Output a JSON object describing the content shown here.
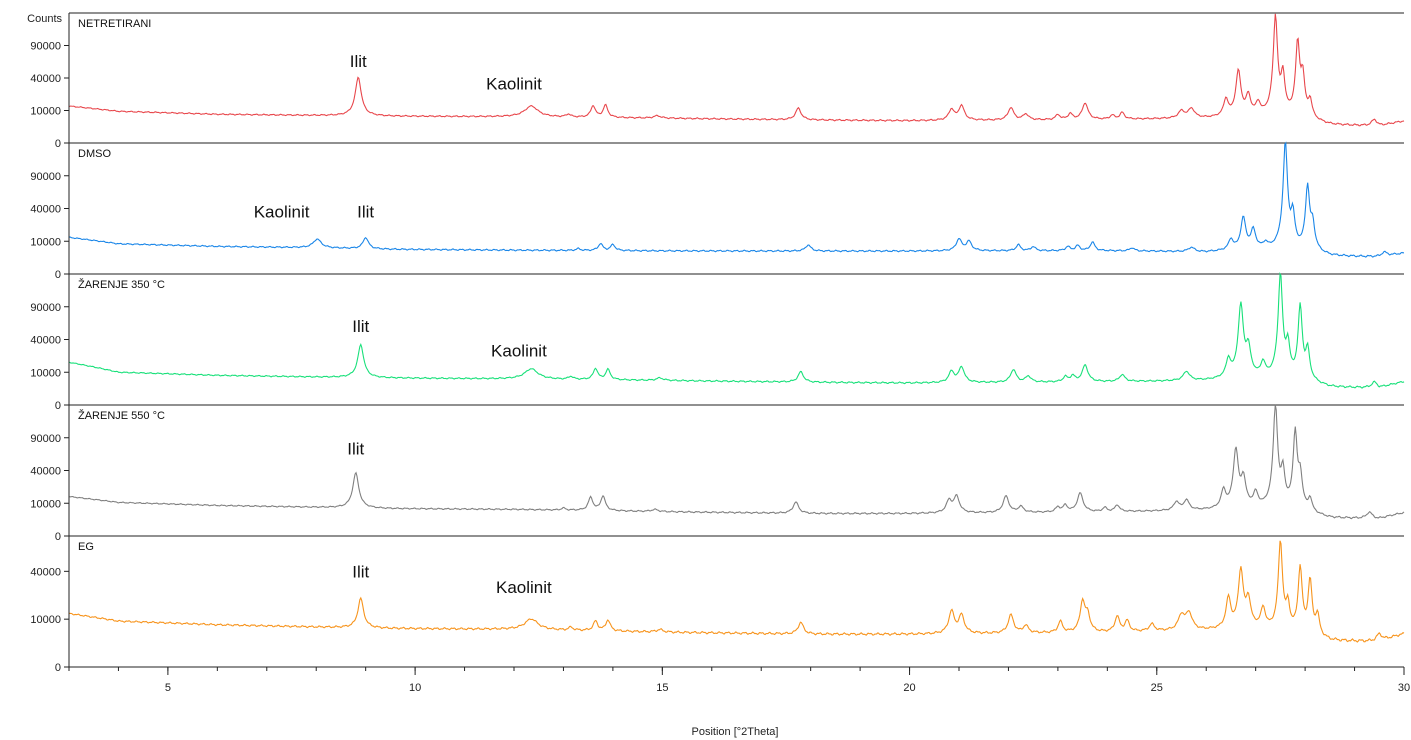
{
  "chart_data": {
    "type": "line",
    "x_range": [
      3,
      30
    ],
    "x_ticks": [
      5,
      10,
      15,
      20,
      25,
      30
    ],
    "x_minor_step": 1,
    "xlabel": "Position [°2Theta]",
    "ylabel": "Counts",
    "grid": false,
    "line_colors": [
      "#e8474c",
      "#1a86e8",
      "#19e07a",
      "#808080",
      "#f7941d"
    ],
    "series": [
      {
        "name": "NETRETIRANI",
        "color": "#e8474c",
        "y_ticks": [
          0,
          10000,
          40000,
          90000
        ],
        "ymax": 160000,
        "base": [
          [
            3,
            12900
          ],
          [
            4,
            9500
          ],
          [
            6,
            7800
          ],
          [
            8,
            7200
          ],
          [
            9.5,
            6800
          ],
          [
            12,
            6500
          ],
          [
            15,
            5800
          ],
          [
            18,
            5000
          ],
          [
            20,
            4700
          ],
          [
            22,
            4900
          ],
          [
            24,
            5200
          ],
          [
            26,
            5700
          ],
          [
            27,
            6200
          ],
          [
            28.5,
            2800
          ],
          [
            29.5,
            2600
          ],
          [
            30,
            4500
          ]
        ],
        "peaks": [
          [
            8.85,
            0.06,
            34000
          ],
          [
            12.35,
            0.15,
            6500
          ],
          [
            13.1,
            0.05,
            1500
          ],
          [
            13.6,
            0.05,
            7000
          ],
          [
            13.85,
            0.05,
            7500
          ],
          [
            14.9,
            0.08,
            1200
          ],
          [
            17.75,
            0.06,
            6500
          ],
          [
            20.85,
            0.06,
            6000
          ],
          [
            21.05,
            0.06,
            8500
          ],
          [
            22.05,
            0.06,
            7000
          ],
          [
            22.35,
            0.06,
            3000
          ],
          [
            23.0,
            0.05,
            2500
          ],
          [
            23.25,
            0.05,
            3000
          ],
          [
            23.55,
            0.06,
            10000
          ],
          [
            24.1,
            0.05,
            2000
          ],
          [
            24.3,
            0.05,
            3500
          ],
          [
            25.5,
            0.07,
            4000
          ],
          [
            25.7,
            0.07,
            5500
          ],
          [
            26.4,
            0.05,
            12000
          ],
          [
            26.65,
            0.05,
            44000
          ],
          [
            26.85,
            0.05,
            15000
          ],
          [
            27.05,
            0.05,
            8000
          ],
          [
            27.4,
            0.04,
            150000
          ],
          [
            27.55,
            0.04,
            40000
          ],
          [
            27.85,
            0.04,
            95000
          ],
          [
            27.95,
            0.04,
            40000
          ],
          [
            28.1,
            0.04,
            12000
          ],
          [
            29.4,
            0.06,
            2500
          ]
        ],
        "annotations": [
          {
            "text": "Ilit",
            "x": 8.85,
            "y": 55000
          },
          {
            "text": "Kaolinit",
            "x": 12.0,
            "y": 27000
          }
        ]
      },
      {
        "name": "DMSO",
        "color": "#1a86e8",
        "y_ticks": [
          0,
          10000,
          40000,
          90000
        ],
        "ymax": 160000,
        "base": [
          [
            3,
            12500
          ],
          [
            4,
            8500
          ],
          [
            6,
            7100
          ],
          [
            8,
            6400
          ],
          [
            9.5,
            5700
          ],
          [
            12,
            5300
          ],
          [
            15,
            5000
          ],
          [
            18,
            4900
          ],
          [
            20,
            4900
          ],
          [
            22,
            5000
          ],
          [
            24,
            5000
          ],
          [
            25,
            4800
          ],
          [
            26,
            4400
          ],
          [
            27,
            5500
          ],
          [
            28.5,
            2700
          ],
          [
            29.5,
            2700
          ],
          [
            30,
            4000
          ]
        ],
        "peaks": [
          [
            8.02,
            0.09,
            5000
          ],
          [
            9.0,
            0.06,
            6500
          ],
          [
            13.3,
            0.05,
            800
          ],
          [
            13.75,
            0.05,
            3500
          ],
          [
            14.0,
            0.05,
            3000
          ],
          [
            17.95,
            0.06,
            3000
          ],
          [
            21.0,
            0.06,
            6500
          ],
          [
            21.2,
            0.06,
            5000
          ],
          [
            22.2,
            0.05,
            3000
          ],
          [
            22.5,
            0.05,
            2000
          ],
          [
            23.2,
            0.05,
            2000
          ],
          [
            23.4,
            0.05,
            2500
          ],
          [
            23.7,
            0.05,
            4500
          ],
          [
            24.5,
            0.05,
            1500
          ],
          [
            25.7,
            0.07,
            2000
          ],
          [
            26.5,
            0.05,
            6000
          ],
          [
            26.75,
            0.05,
            25000
          ],
          [
            26.95,
            0.05,
            13000
          ],
          [
            27.2,
            0.05,
            3000
          ],
          [
            27.6,
            0.04,
            160000
          ],
          [
            27.75,
            0.04,
            30000
          ],
          [
            28.05,
            0.04,
            70000
          ],
          [
            28.15,
            0.04,
            20000
          ],
          [
            29.6,
            0.06,
            1500
          ]
        ],
        "annotations": [
          {
            "text": "Kaolinit",
            "x": 7.3,
            "y": 30000
          },
          {
            "text": "Ilit",
            "x": 9.0,
            "y": 30000
          }
        ]
      },
      {
        "name": "ŽARENJE 350 °C",
        "color": "#19e07a",
        "y_ticks": [
          0,
          10000,
          40000,
          90000
        ],
        "ymax": 160000,
        "base": [
          [
            3,
            17000
          ],
          [
            4,
            10000
          ],
          [
            6,
            8200
          ],
          [
            8,
            7300
          ],
          [
            9.5,
            6800
          ],
          [
            12,
            6300
          ],
          [
            15,
            5600
          ],
          [
            18,
            4800
          ],
          [
            20,
            4500
          ],
          [
            22,
            4700
          ],
          [
            24,
            5000
          ],
          [
            26,
            5400
          ],
          [
            27,
            6000
          ],
          [
            28.5,
            2600
          ],
          [
            29.5,
            2600
          ],
          [
            30,
            5000
          ]
        ],
        "peaks": [
          [
            8.9,
            0.06,
            27000
          ],
          [
            12.35,
            0.15,
            6000
          ],
          [
            13.15,
            0.05,
            1500
          ],
          [
            13.65,
            0.05,
            6500
          ],
          [
            13.9,
            0.05,
            6000
          ],
          [
            14.95,
            0.08,
            1200
          ],
          [
            17.8,
            0.06,
            5500
          ],
          [
            20.85,
            0.06,
            6000
          ],
          [
            21.05,
            0.06,
            9000
          ],
          [
            22.1,
            0.06,
            7000
          ],
          [
            22.4,
            0.06,
            3000
          ],
          [
            23.15,
            0.05,
            2500
          ],
          [
            23.3,
            0.05,
            3000
          ],
          [
            23.55,
            0.06,
            10000
          ],
          [
            24.3,
            0.06,
            3500
          ],
          [
            25.6,
            0.07,
            5000
          ],
          [
            26.45,
            0.05,
            13000
          ],
          [
            26.7,
            0.05,
            90000
          ],
          [
            26.85,
            0.05,
            25000
          ],
          [
            27.15,
            0.05,
            10000
          ],
          [
            27.5,
            0.04,
            160000
          ],
          [
            27.65,
            0.04,
            30000
          ],
          [
            27.9,
            0.04,
            90000
          ],
          [
            28.05,
            0.04,
            25000
          ],
          [
            29.4,
            0.06,
            2200
          ]
        ],
        "annotations": [
          {
            "text": "Ilit",
            "x": 8.9,
            "y": 50000
          },
          {
            "text": "Kaolinit",
            "x": 12.1,
            "y": 22000
          }
        ]
      },
      {
        "name": "ŽARENJE 550 °C",
        "color": "#808080",
        "y_ticks": [
          0,
          10000,
          40000,
          90000
        ],
        "ymax": 160000,
        "base": [
          [
            3,
            14500
          ],
          [
            4,
            10500
          ],
          [
            6,
            8700
          ],
          [
            8,
            7700
          ],
          [
            9.5,
            7000
          ],
          [
            12,
            6600
          ],
          [
            15,
            5500
          ],
          [
            18,
            4700
          ],
          [
            20,
            4700
          ],
          [
            22,
            5000
          ],
          [
            24,
            5400
          ],
          [
            26,
            6000
          ],
          [
            27,
            6500
          ],
          [
            28.5,
            2700
          ],
          [
            29.5,
            2700
          ],
          [
            30,
            5000
          ]
        ],
        "peaks": [
          [
            8.8,
            0.06,
            30000
          ],
          [
            13.0,
            0.05,
            1000
          ],
          [
            13.55,
            0.05,
            8000
          ],
          [
            13.8,
            0.05,
            9000
          ],
          [
            14.85,
            0.08,
            1000
          ],
          [
            17.7,
            0.06,
            6000
          ],
          [
            20.8,
            0.06,
            7000
          ],
          [
            20.95,
            0.06,
            10000
          ],
          [
            21.95,
            0.06,
            10000
          ],
          [
            22.25,
            0.06,
            3000
          ],
          [
            23.0,
            0.05,
            2500
          ],
          [
            23.15,
            0.05,
            3500
          ],
          [
            23.45,
            0.06,
            12000
          ],
          [
            23.95,
            0.05,
            2000
          ],
          [
            24.2,
            0.05,
            3500
          ],
          [
            25.4,
            0.06,
            5000
          ],
          [
            25.6,
            0.06,
            6000
          ],
          [
            26.35,
            0.05,
            13000
          ],
          [
            26.6,
            0.05,
            65000
          ],
          [
            26.75,
            0.05,
            25000
          ],
          [
            27.0,
            0.05,
            10000
          ],
          [
            27.4,
            0.04,
            160000
          ],
          [
            27.55,
            0.04,
            35000
          ],
          [
            27.8,
            0.04,
            100000
          ],
          [
            27.9,
            0.04,
            30000
          ],
          [
            28.1,
            0.04,
            8000
          ],
          [
            29.3,
            0.06,
            2500
          ]
        ],
        "annotations": [
          {
            "text": "Ilit",
            "x": 8.8,
            "y": 62000
          }
        ]
      },
      {
        "name": "EG",
        "color": "#f7941d",
        "y_ticks": [
          0,
          10000,
          40000
        ],
        "ymax": 75000,
        "base": [
          [
            3,
            12500
          ],
          [
            4,
            9200
          ],
          [
            6,
            7800
          ],
          [
            8,
            7000
          ],
          [
            9.5,
            6500
          ],
          [
            12,
            6200
          ],
          [
            15,
            5300
          ],
          [
            18,
            4700
          ],
          [
            20,
            4700
          ],
          [
            22,
            4900
          ],
          [
            24,
            5200
          ],
          [
            26,
            5800
          ],
          [
            27,
            6200
          ],
          [
            28.5,
            2800
          ],
          [
            29.5,
            2800
          ],
          [
            30,
            4800
          ]
        ],
        "peaks": [
          [
            8.9,
            0.06,
            14000
          ],
          [
            12.35,
            0.15,
            4000
          ],
          [
            13.15,
            0.05,
            1000
          ],
          [
            13.65,
            0.05,
            3500
          ],
          [
            13.9,
            0.05,
            4000
          ],
          [
            14.95,
            0.08,
            800
          ],
          [
            17.8,
            0.06,
            4000
          ],
          [
            20.85,
            0.06,
            9000
          ],
          [
            21.05,
            0.06,
            7000
          ],
          [
            22.05,
            0.06,
            7000
          ],
          [
            22.35,
            0.06,
            2500
          ],
          [
            23.05,
            0.05,
            4000
          ],
          [
            23.5,
            0.05,
            14000
          ],
          [
            23.6,
            0.05,
            7000
          ],
          [
            24.2,
            0.05,
            6000
          ],
          [
            24.4,
            0.05,
            4000
          ],
          [
            24.9,
            0.06,
            2500
          ],
          [
            25.5,
            0.07,
            6000
          ],
          [
            25.65,
            0.07,
            7000
          ],
          [
            26.45,
            0.05,
            15000
          ],
          [
            26.7,
            0.05,
            36000
          ],
          [
            26.85,
            0.05,
            14000
          ],
          [
            27.15,
            0.05,
            9000
          ],
          [
            27.5,
            0.04,
            65000
          ],
          [
            27.65,
            0.04,
            12000
          ],
          [
            27.9,
            0.04,
            40000
          ],
          [
            28.1,
            0.04,
            30000
          ],
          [
            28.25,
            0.04,
            8000
          ],
          [
            29.5,
            0.06,
            2000
          ]
        ],
        "annotations": [
          {
            "text": "Ilit",
            "x": 8.9,
            "y": 35000
          },
          {
            "text": "Kaolinit",
            "x": 12.2,
            "y": 24000
          }
        ]
      }
    ]
  }
}
